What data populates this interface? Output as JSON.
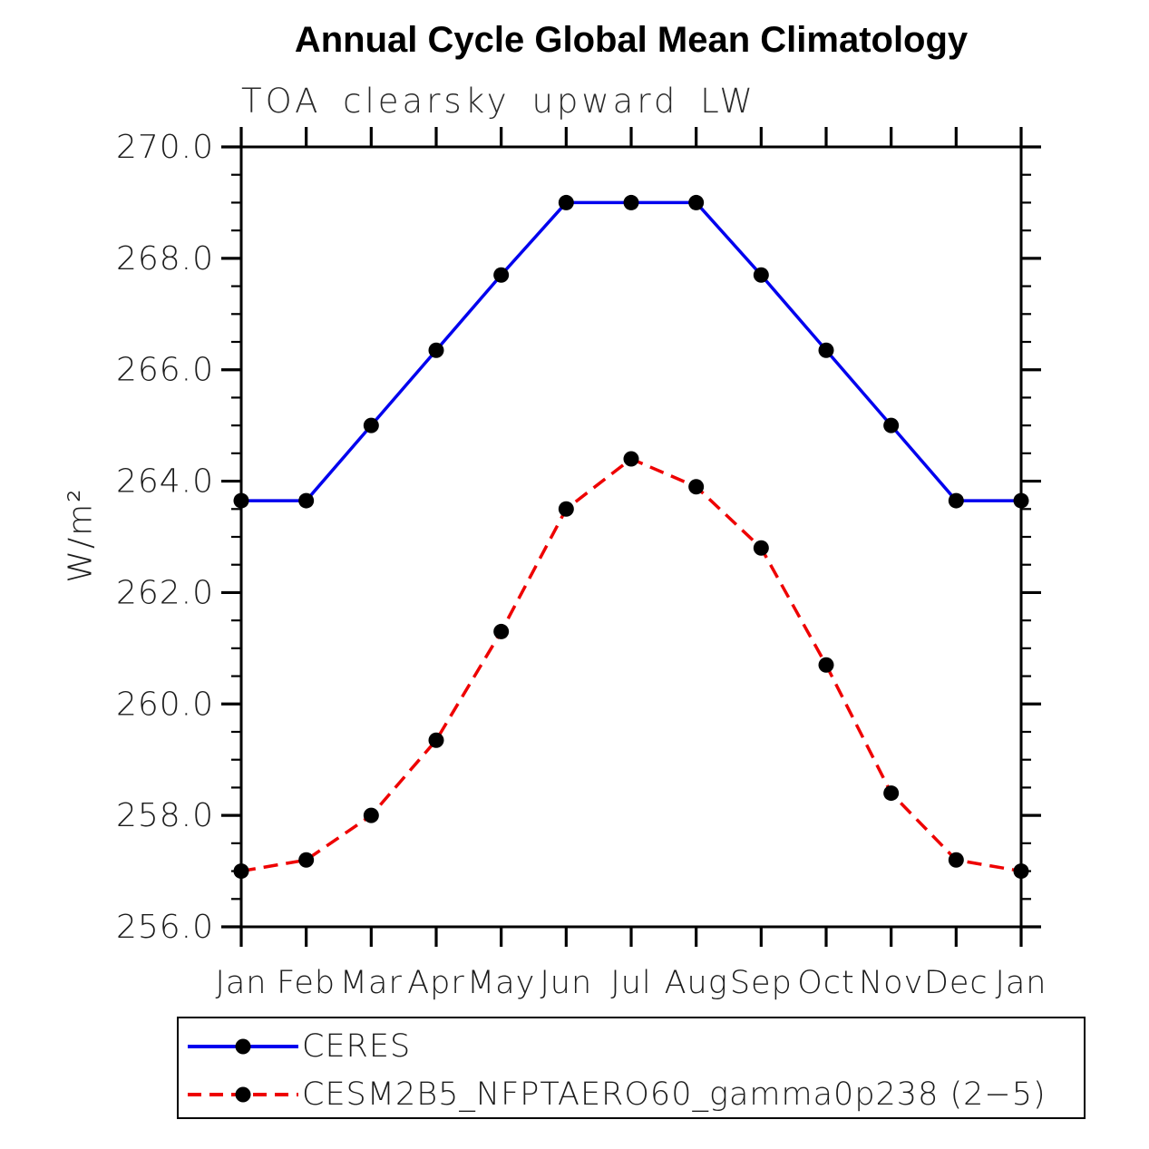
{
  "title": "Annual Cycle Global Mean Climatology",
  "subtitle": "TOA clearsky upward LW",
  "chart_data": {
    "type": "line",
    "title": "Annual Cycle Global Mean Climatology",
    "subtitle": "TOA clearsky upward LW",
    "xlabel": "",
    "ylabel": "W/m²",
    "categories": [
      "Jan",
      "Feb",
      "Mar",
      "Apr",
      "May",
      "Jun",
      "Jul",
      "Aug",
      "Sep",
      "Oct",
      "Nov",
      "Dec",
      "Jan"
    ],
    "ylim": [
      256.0,
      270.0
    ],
    "ytick_major_step": 2.0,
    "ytick_minor_step": 0.5,
    "ytick_labels": [
      "256.0",
      "258.0",
      "260.0",
      "262.0",
      "264.0",
      "266.0",
      "268.0",
      "270.0"
    ],
    "grid": false,
    "legend_position": "bottom",
    "axis_color": "#000000",
    "marker_color": "#000000",
    "series": [
      {
        "name": "CERES",
        "color": "#0000ee",
        "style": "solid",
        "marker": "circle",
        "values": [
          263.65,
          263.65,
          265.0,
          266.35,
          267.7,
          269.0,
          269.0,
          269.0,
          267.7,
          266.35,
          265.0,
          263.65,
          263.65
        ]
      },
      {
        "name": "CESM2B5_NFPTAERO60_gamma0p238 (2−5)",
        "color": "#ee0000",
        "style": "dashed",
        "marker": "circle",
        "values": [
          257.0,
          257.2,
          258.0,
          259.35,
          261.3,
          263.5,
          264.4,
          263.9,
          262.8,
          260.7,
          258.4,
          257.2,
          257.0
        ]
      }
    ]
  }
}
